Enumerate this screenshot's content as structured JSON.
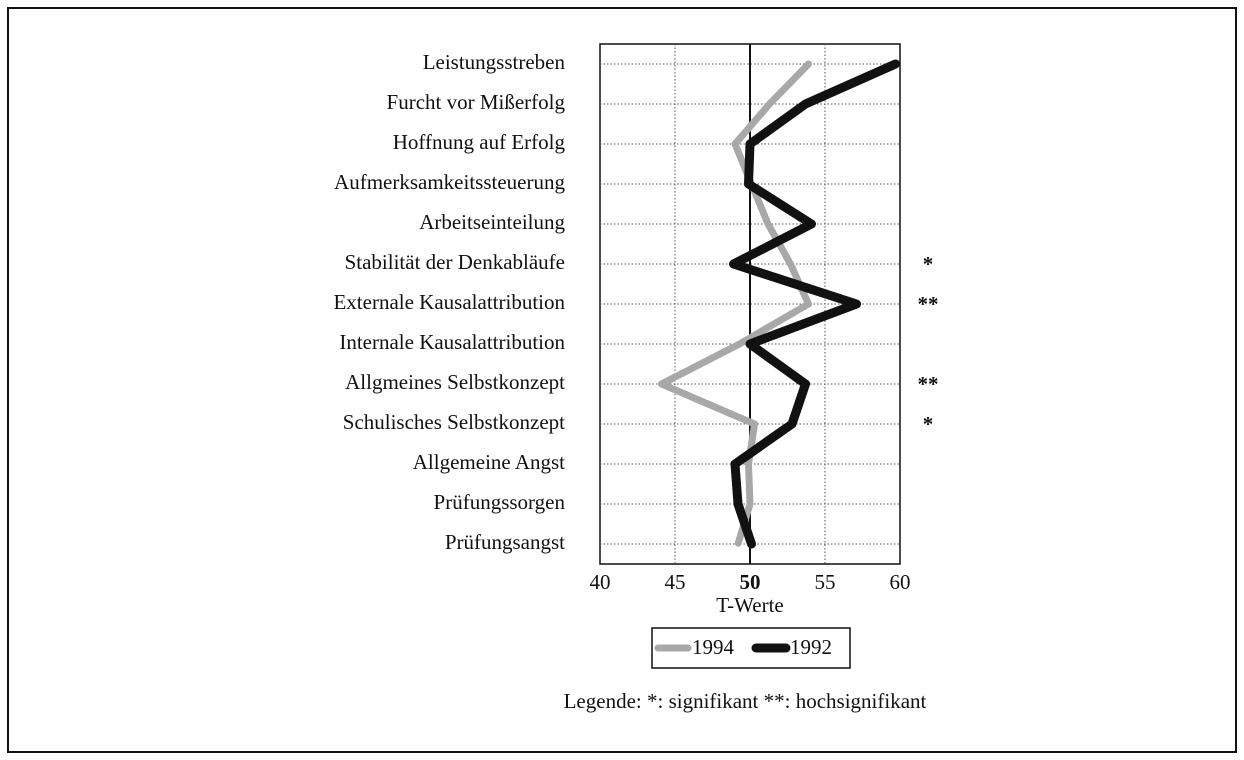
{
  "chart_data": {
    "type": "line",
    "orientation": "horizontal",
    "categories": [
      "Leistungsstreben",
      "Furcht vor Mißerfolg",
      "Hoffnung auf Erfolg",
      "Aufmerksamkeitssteuerung",
      "Arbeitseinteilung",
      "Stabilität der Denkabläufe",
      "Externale Kausalattribution",
      "Internale Kausalattribution",
      "Allgmeines  Selbstkonzept",
      "Schulisches Selbstkonzept",
      "Allgemeine Angst",
      "Prüfungssorgen",
      "Prüfungsangst"
    ],
    "series": [
      {
        "name": "1994",
        "color": "#a8a8a8",
        "values": [
          53.9,
          51.3,
          49,
          50.1,
          51.2,
          52.7,
          53.9,
          49.3,
          44.1,
          50.3,
          49.9,
          50,
          49.2
        ]
      },
      {
        "name": "1992",
        "color": "#111111",
        "values": [
          59.7,
          53.7,
          50,
          49.9,
          54.1,
          48.9,
          57.1,
          50,
          53.7,
          52.8,
          49,
          49.2,
          50.1
        ]
      }
    ],
    "significance": [
      null,
      null,
      null,
      null,
      null,
      "*",
      "**",
      null,
      "**",
      "*",
      null,
      null,
      null
    ],
    "xlabel": "T-Werte",
    "xlim": [
      40,
      60
    ],
    "xticks": [
      40,
      45,
      50,
      55,
      60
    ],
    "reference_line": 50,
    "grid": true,
    "footnote": "Legende: *: signifikant **: hochsignifikant"
  }
}
